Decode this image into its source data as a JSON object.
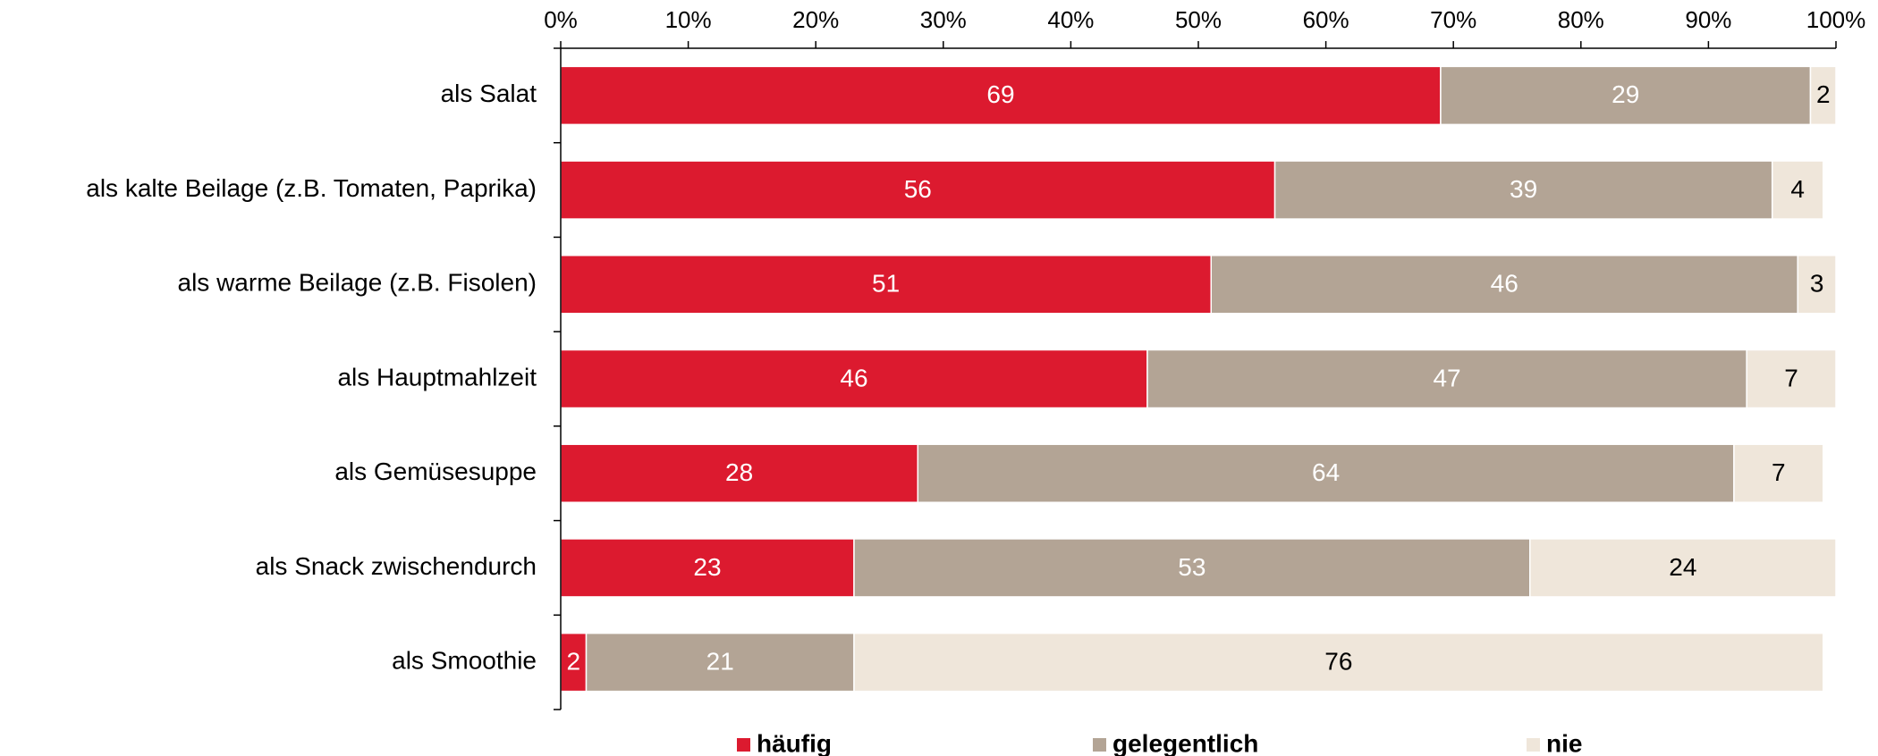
{
  "chart_data": {
    "type": "stacked_barh",
    "categories": [
      "als Salat",
      "als kalte Beilage (z.B. Tomaten, Paprika)",
      "als warme Beilage (z.B. Fisolen)",
      "als Hauptmahlzeit",
      "als Gemüsesuppe",
      "als Snack zwischendurch",
      "als Smoothie"
    ],
    "series": [
      {
        "name": "häufig",
        "color": "#dc1a2f",
        "label_color": "#ffffff",
        "values": [
          69,
          56,
          51,
          46,
          28,
          23,
          2
        ]
      },
      {
        "name": "gelegentlich",
        "color": "#b3a495",
        "label_color": "#ffffff",
        "values": [
          29,
          39,
          46,
          47,
          64,
          53,
          21
        ]
      },
      {
        "name": "nie",
        "color": "#efe6da",
        "label_color": "#000000",
        "values": [
          2,
          4,
          3,
          7,
          7,
          24,
          76
        ]
      }
    ],
    "xlim": [
      0,
      100
    ],
    "xticks": [
      {
        "value": 0,
        "label": "0%"
      },
      {
        "value": 10,
        "label": "10%"
      },
      {
        "value": 20,
        "label": "20%"
      },
      {
        "value": 30,
        "label": "30%"
      },
      {
        "value": 40,
        "label": "40%"
      },
      {
        "value": 50,
        "label": "50%"
      },
      {
        "value": 60,
        "label": "60%"
      },
      {
        "value": 70,
        "label": "70%"
      },
      {
        "value": 80,
        "label": "80%"
      },
      {
        "value": 90,
        "label": "90%"
      },
      {
        "value": 100,
        "label": "100%"
      }
    ],
    "legend": "bottom"
  }
}
